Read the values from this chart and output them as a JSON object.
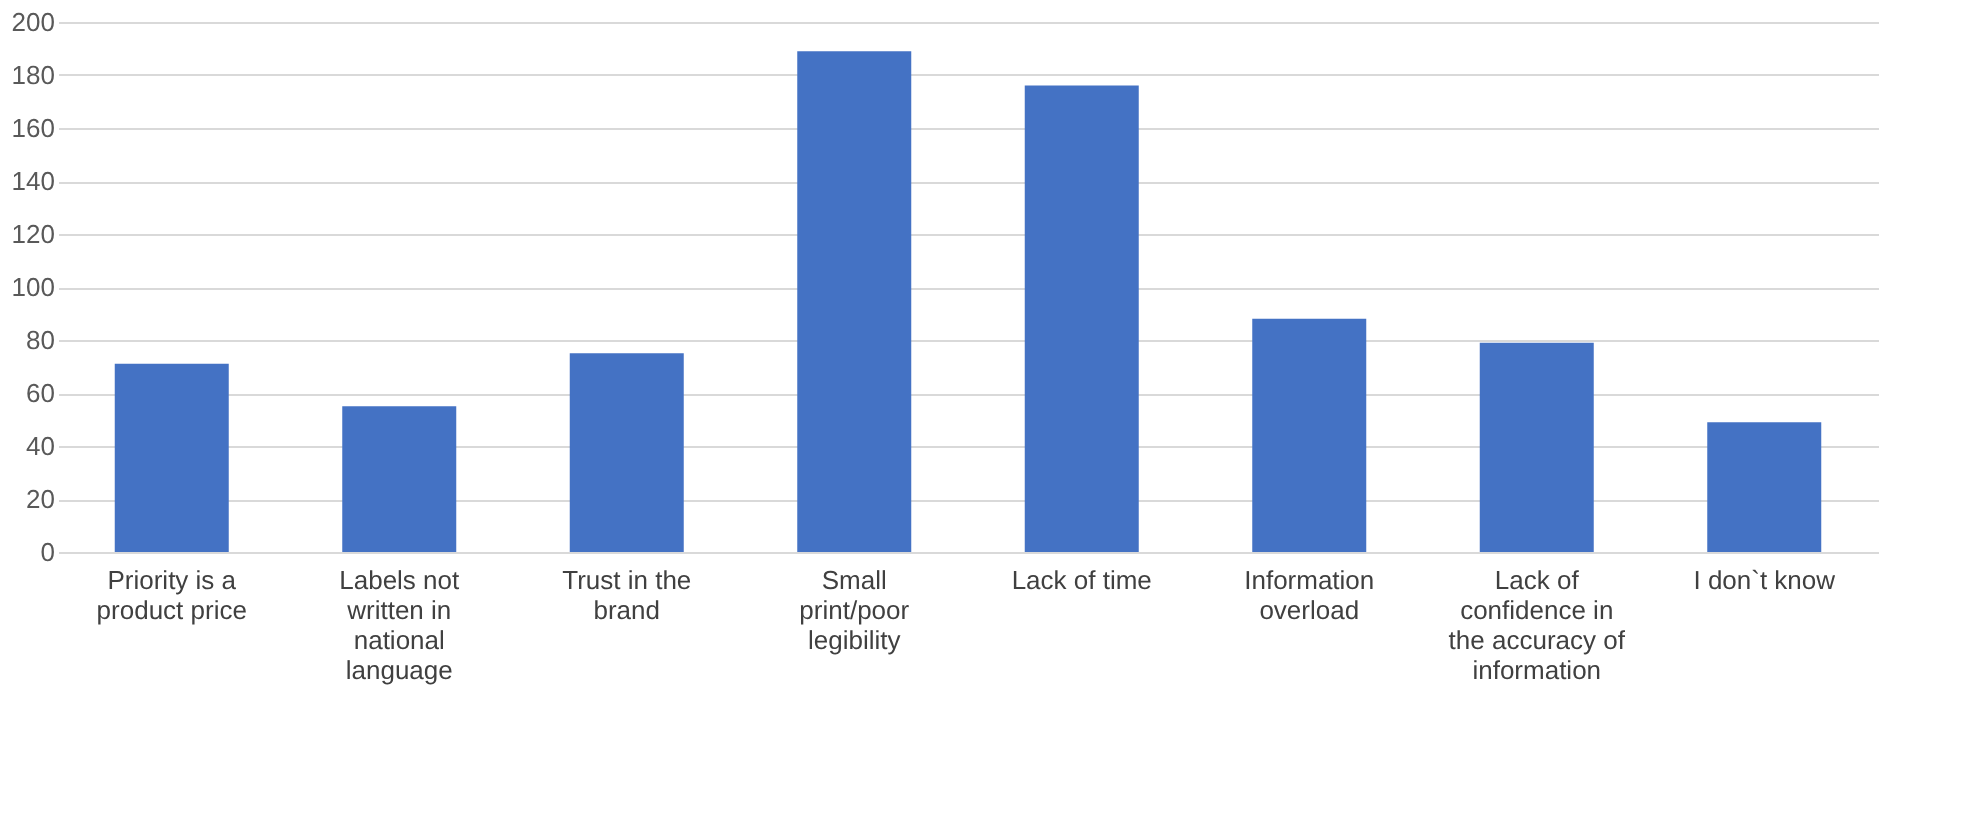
{
  "chart_data": {
    "type": "bar",
    "categories": [
      "Priority is a product price",
      "Labels not written in national language",
      "Trust in the brand",
      "Small print/poor legibility",
      "Lack of time",
      "Information overload",
      "Lack of confidence in the accuracy of information",
      "I don`t know"
    ],
    "values": [
      71,
      55,
      75,
      189,
      176,
      88,
      79,
      49
    ],
    "color": "#4472c4",
    "ylim": [
      0,
      200
    ],
    "yticks": [
      0,
      20,
      40,
      60,
      80,
      100,
      120,
      140,
      160,
      180,
      200
    ],
    "grid": "y"
  }
}
